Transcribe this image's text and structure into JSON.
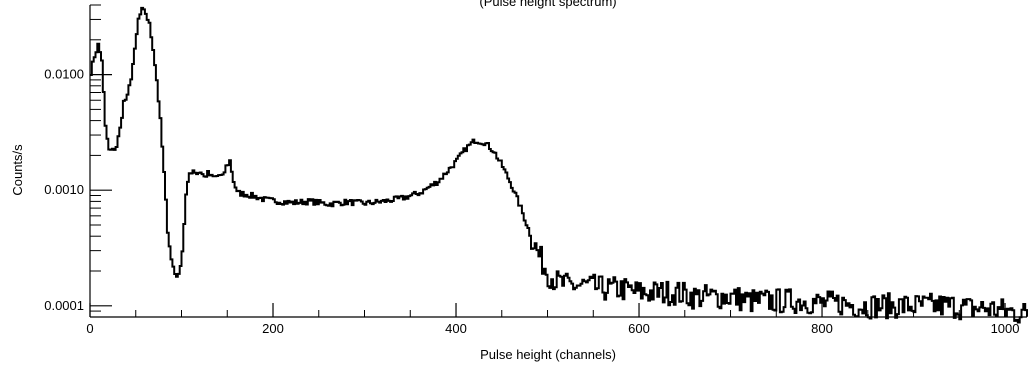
{
  "chart_data": {
    "type": "line",
    "title": "(Pulse height spectrum)",
    "xlabel": "Pulse height (channels)",
    "ylabel": "Counts/s",
    "xlim": [
      0,
      1024
    ],
    "ylim": [
      8e-05,
      0.04
    ],
    "yscale": "log",
    "grid": false,
    "line_style": "step",
    "x_ticks": [
      0,
      200,
      400,
      600,
      800,
      1000
    ],
    "y_ticks": [
      0.0001,
      0.001,
      0.01
    ],
    "x_tick_labels": [
      "0",
      "200",
      "400",
      "600",
      "800",
      "1000"
    ],
    "y_tick_labels": [
      "0.0001",
      "0.0010",
      "0.0100"
    ],
    "series": [
      {
        "x": [
          0,
          4,
          8,
          12,
          16,
          20,
          24,
          28,
          32,
          36,
          40,
          44,
          48,
          52,
          56,
          60,
          64,
          68,
          72,
          76,
          80,
          84,
          88,
          92,
          96,
          100,
          104,
          108,
          112,
          116,
          120,
          124,
          128,
          132,
          136,
          140,
          144,
          148,
          152,
          156,
          160,
          170,
          180,
          190,
          200,
          220,
          240,
          260,
          280,
          300,
          320,
          340,
          360,
          380,
          400,
          410,
          420,
          430,
          440,
          450,
          460,
          470,
          480,
          490,
          500,
          510,
          520,
          540,
          560,
          580,
          600,
          620,
          640,
          660,
          680,
          700,
          720,
          740,
          760,
          780,
          800,
          820,
          840,
          860,
          880,
          900,
          920,
          940,
          960,
          980,
          1000,
          1024
        ],
        "y": [
          0.0105,
          0.0145,
          0.018,
          0.0135,
          0.0035,
          0.0022,
          0.0022,
          0.0024,
          0.0034,
          0.0058,
          0.0064,
          0.0095,
          0.016,
          0.03,
          0.036,
          0.034,
          0.027,
          0.017,
          0.009,
          0.004,
          0.0014,
          0.00045,
          0.00025,
          0.00019,
          0.00018,
          0.0003,
          0.0009,
          0.0014,
          0.0015,
          0.0014,
          0.00145,
          0.0013,
          0.0014,
          0.0013,
          0.0013,
          0.00135,
          0.0013,
          0.0016,
          0.0018,
          0.0012,
          0.00095,
          0.00092,
          0.00088,
          0.00083,
          0.00081,
          0.00078,
          0.0008,
          0.00076,
          0.00079,
          0.00077,
          0.0008,
          0.00085,
          0.00095,
          0.0012,
          0.0018,
          0.0023,
          0.0027,
          0.0026,
          0.0022,
          0.0016,
          0.0011,
          0.0007,
          0.00042,
          0.00027,
          0.00019,
          0.00016,
          0.00015,
          0.00015,
          0.00014,
          0.00014,
          0.00013,
          0.00013,
          0.00013,
          0.00012,
          0.00012,
          0.00012,
          0.00011,
          0.00011,
          0.00011,
          0.00011,
          0.000105,
          0.000105,
          0.0001,
          0.0001,
          0.0001,
          0.0001,
          0.0001,
          0.0001,
          9.5e-05,
          9.5e-05,
          9e-05,
          8.5e-05
        ]
      }
    ]
  }
}
